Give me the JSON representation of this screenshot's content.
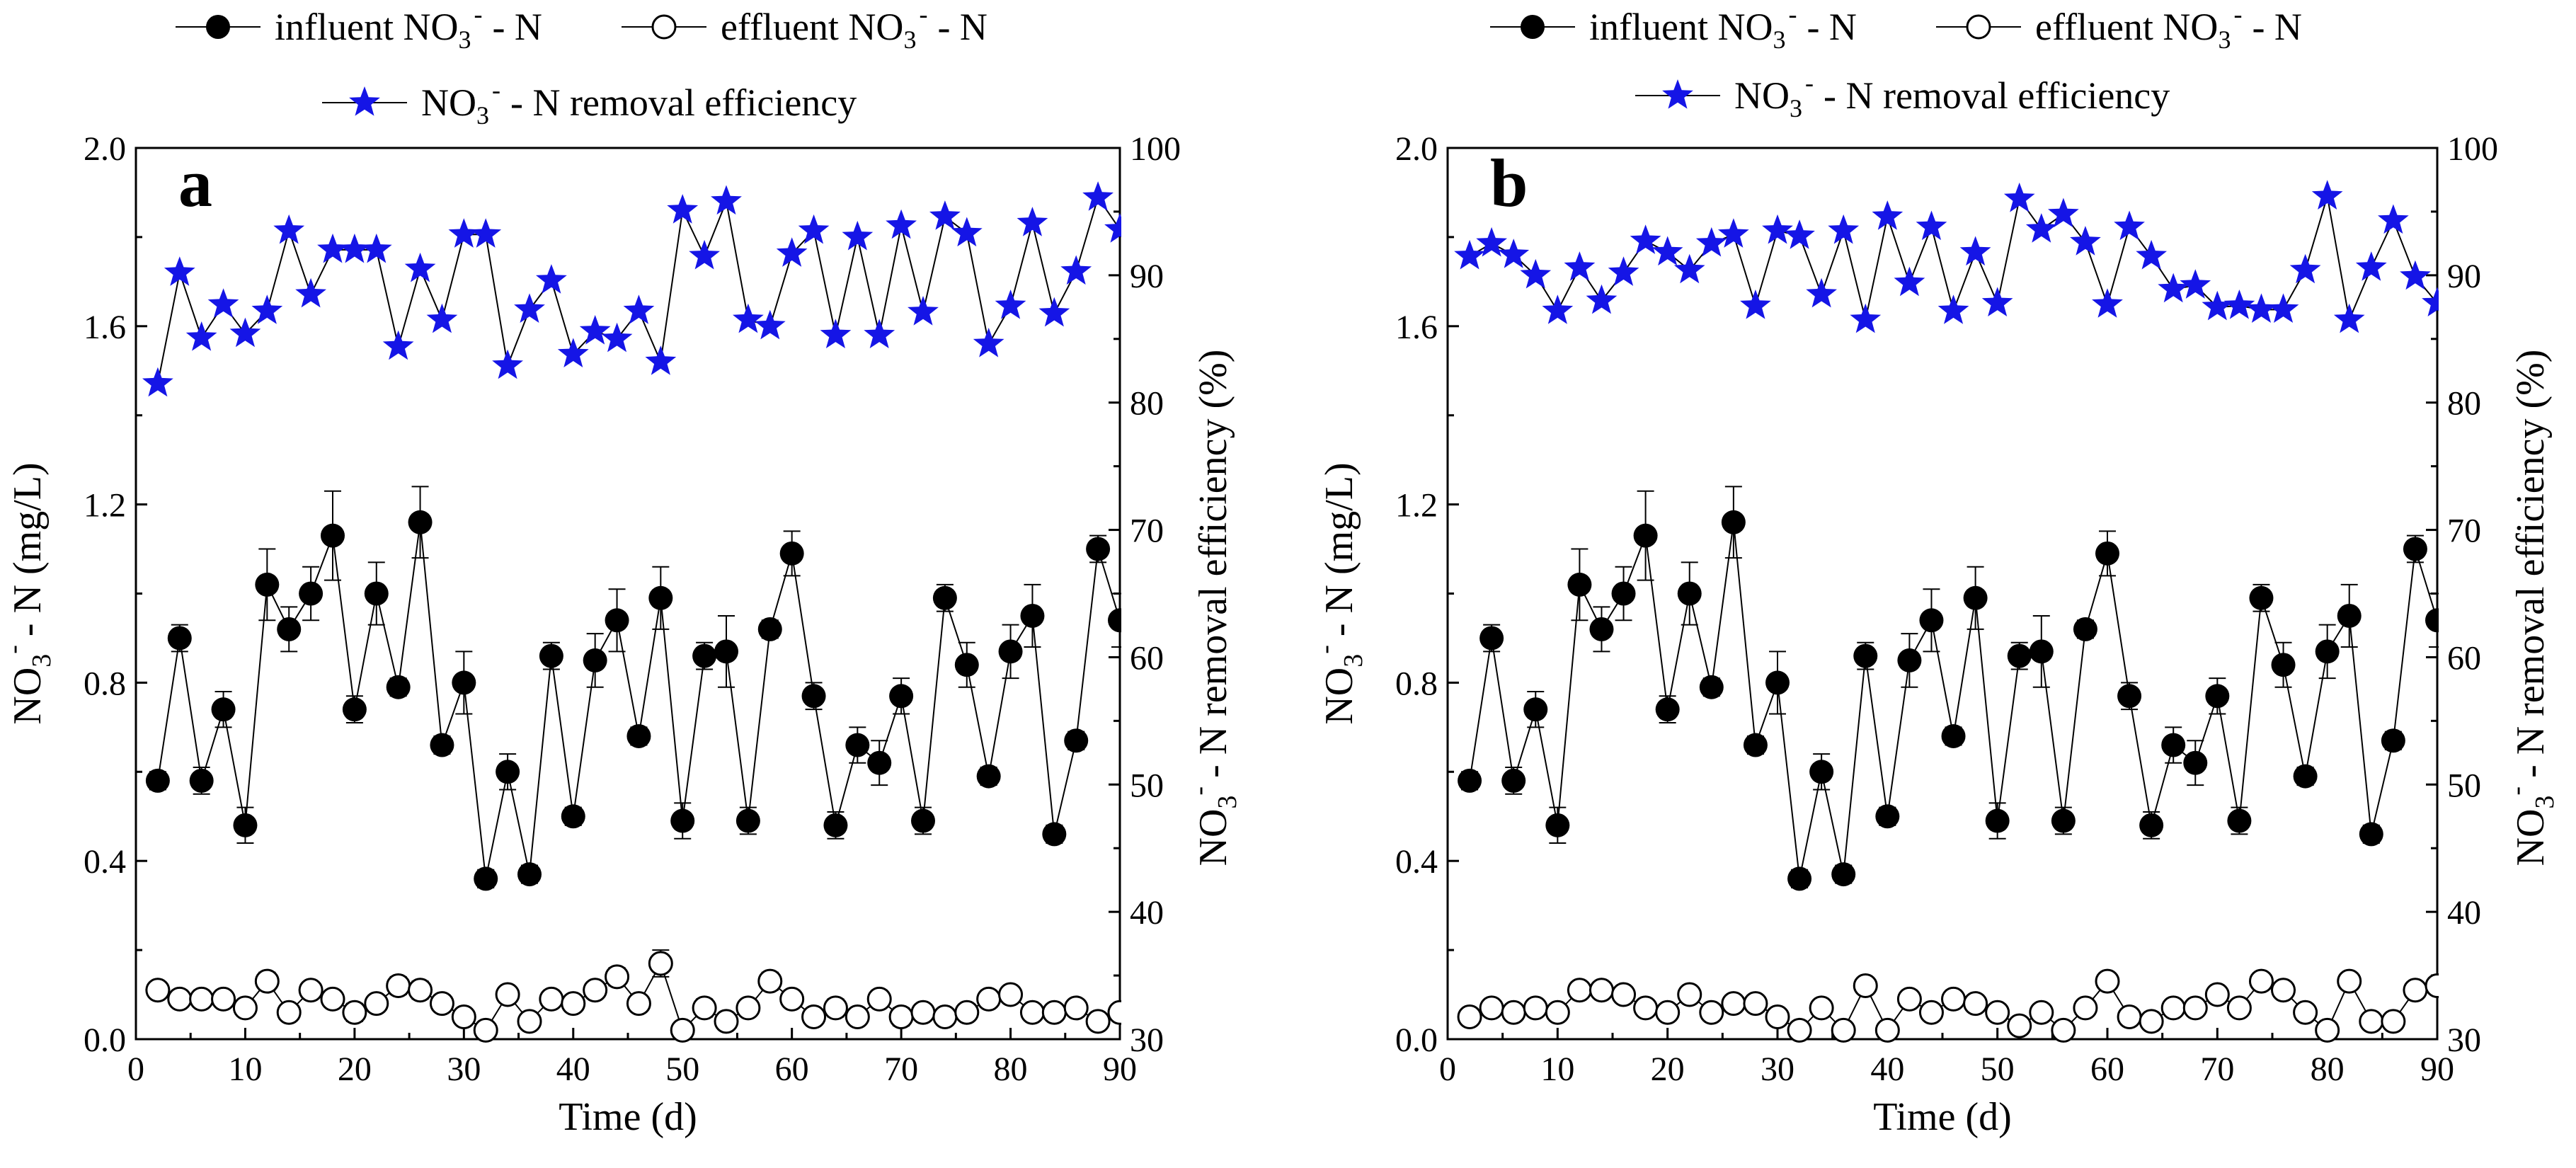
{
  "figure": {
    "legend": {
      "influent": "influent NO",
      "effluent": "effluent NO",
      "efficiency": "NO",
      "ion_sub": "3",
      "ion_sup": "-",
      "n_suffix": "- N",
      "eff_suffix": "- N removal efficiency"
    },
    "axes_text": {
      "xlabel": "Time (d)",
      "ylabel_left_main": "NO",
      "ylabel_left_rest": "- N (mg/L)",
      "ylabel_right_main": "NO",
      "ylabel_right_rest": "- N removal efficiency (%)",
      "sub": "3",
      "sup": "-"
    },
    "colors": {
      "efficiency": "#1515e6",
      "ink": "#000000",
      "open_marker": "#ffffff"
    }
  },
  "chart_data": [
    {
      "panel": "a",
      "type": "scatter-line",
      "xlabel": "Time (d)",
      "ylabel": "NO3- - N (mg/L)",
      "ylabel_right": "NO3- - N removal efficiency (%)",
      "xlim": [
        0,
        90
      ],
      "ylim": [
        0,
        2.0
      ],
      "ylim_right": [
        30,
        100
      ],
      "xticks": [
        0,
        10,
        20,
        30,
        40,
        50,
        60,
        70,
        80,
        90
      ],
      "yticks": [
        0.0,
        0.4,
        0.8,
        1.2,
        1.6,
        2.0
      ],
      "yticks_right": [
        30,
        40,
        50,
        60,
        70,
        80,
        90,
        100
      ],
      "series": [
        {
          "name": "influent NO3- - N",
          "marker": "filled-circle",
          "axis": "left",
          "x": [
            2,
            4,
            6,
            8,
            10,
            12,
            14,
            16,
            18,
            20,
            22,
            24,
            26,
            28,
            30,
            32,
            34,
            36,
            38,
            40,
            42,
            44,
            46,
            48,
            50,
            52,
            54,
            56,
            58,
            60,
            62,
            64,
            66,
            68,
            70,
            72,
            74,
            76,
            78,
            80,
            82,
            84,
            86,
            88,
            90
          ],
          "y": [
            0.58,
            0.9,
            0.58,
            0.74,
            0.48,
            1.02,
            0.92,
            1.0,
            1.13,
            0.74,
            1.0,
            0.79,
            1.16,
            0.66,
            0.8,
            0.36,
            0.6,
            0.37,
            0.86,
            0.5,
            0.85,
            0.94,
            0.68,
            0.99,
            0.49,
            0.86,
            0.87,
            0.49,
            0.92,
            1.09,
            0.77,
            0.48,
            0.66,
            0.62,
            0.77,
            0.49,
            0.99,
            0.84,
            0.59,
            0.87,
            0.95,
            0.46,
            0.67,
            1.1,
            0.94
          ],
          "err": [
            0.02,
            0.03,
            0.03,
            0.04,
            0.04,
            0.08,
            0.05,
            0.06,
            0.1,
            0.03,
            0.07,
            0.02,
            0.08,
            0.02,
            0.07,
            0.02,
            0.04,
            0.02,
            0.03,
            0.02,
            0.06,
            0.07,
            0.02,
            0.07,
            0.04,
            0.03,
            0.08,
            0.03,
            0.02,
            0.05,
            0.03,
            0.03,
            0.04,
            0.05,
            0.04,
            0.03,
            0.03,
            0.05,
            0.02,
            0.06,
            0.07,
            0.02,
            0.02,
            0.03,
            0.06
          ]
        },
        {
          "name": "effluent NO3- - N",
          "marker": "open-circle",
          "axis": "left",
          "x": [
            2,
            4,
            6,
            8,
            10,
            12,
            14,
            16,
            18,
            20,
            22,
            24,
            26,
            28,
            30,
            32,
            34,
            36,
            38,
            40,
            42,
            44,
            46,
            48,
            50,
            52,
            54,
            56,
            58,
            60,
            62,
            64,
            66,
            68,
            70,
            72,
            74,
            76,
            78,
            80,
            82,
            84,
            86,
            88,
            90
          ],
          "y": [
            0.11,
            0.09,
            0.09,
            0.09,
            0.07,
            0.13,
            0.06,
            0.11,
            0.09,
            0.06,
            0.08,
            0.12,
            0.11,
            0.08,
            0.05,
            0.02,
            0.1,
            0.04,
            0.09,
            0.08,
            0.11,
            0.14,
            0.08,
            0.17,
            0.02,
            0.07,
            0.04,
            0.07,
            0.13,
            0.09,
            0.05,
            0.07,
            0.05,
            0.09,
            0.05,
            0.06,
            0.05,
            0.06,
            0.09,
            0.1,
            0.06,
            0.06,
            0.07,
            0.04,
            0.06
          ],
          "err": [
            0.01,
            0.01,
            0.01,
            0.01,
            0.01,
            0.02,
            0.01,
            0.01,
            0.01,
            0.02,
            0.01,
            0.02,
            0.02,
            0.01,
            0.01,
            0.01,
            0.01,
            0.01,
            0.01,
            0.01,
            0.01,
            0.02,
            0.01,
            0.03,
            0.01,
            0.02,
            0.01,
            0.01,
            0.02,
            0.01,
            0.01,
            0.02,
            0.01,
            0.01,
            0.02,
            0.01,
            0.01,
            0.01,
            0.01,
            0.01,
            0.01,
            0.01,
            0.01,
            0.01,
            0.01
          ]
        },
        {
          "name": "NO3- - N removal efficiency",
          "marker": "star",
          "axis": "right",
          "color": "#1515e6",
          "x": [
            2,
            4,
            6,
            8,
            10,
            12,
            14,
            16,
            18,
            20,
            22,
            24,
            26,
            28,
            30,
            32,
            34,
            36,
            38,
            40,
            42,
            44,
            46,
            48,
            50,
            52,
            54,
            56,
            58,
            60,
            62,
            64,
            66,
            68,
            70,
            72,
            74,
            76,
            78,
            80,
            82,
            84,
            86,
            88,
            90
          ],
          "y": [
            81.5,
            90.2,
            85.1,
            87.7,
            85.4,
            87.2,
            93.5,
            88.5,
            92.0,
            92.0,
            92.0,
            84.4,
            90.5,
            86.5,
            93.2,
            93.2,
            82.9,
            87.3,
            89.6,
            83.8,
            85.6,
            85.0,
            87.2,
            83.2,
            95.1,
            91.5,
            95.8,
            86.5,
            86.0,
            91.7,
            93.5,
            85.3,
            93.0,
            85.3,
            93.9,
            87.1,
            94.6,
            93.3,
            84.6,
            87.6,
            94.1,
            87.0,
            90.3,
            96.1,
            93.6
          ]
        }
      ]
    },
    {
      "panel": "b",
      "type": "scatter-line",
      "xlabel": "Time (d)",
      "ylabel": "NO3- - N (mg/L)",
      "ylabel_right": "NO3- - N removal efficiency (%)",
      "xlim": [
        0,
        90
      ],
      "ylim": [
        0,
        2.0
      ],
      "ylim_right": [
        30,
        100
      ],
      "xticks": [
        0,
        10,
        20,
        30,
        40,
        50,
        60,
        70,
        80,
        90
      ],
      "yticks": [
        0.0,
        0.4,
        0.8,
        1.2,
        1.6,
        2.0
      ],
      "yticks_right": [
        30,
        40,
        50,
        60,
        70,
        80,
        90,
        100
      ],
      "series": [
        {
          "name": "influent NO3- - N",
          "marker": "filled-circle",
          "axis": "left",
          "x": [
            2,
            4,
            6,
            8,
            10,
            12,
            14,
            16,
            18,
            20,
            22,
            24,
            26,
            28,
            30,
            32,
            34,
            36,
            38,
            40,
            42,
            44,
            46,
            48,
            50,
            52,
            54,
            56,
            58,
            60,
            62,
            64,
            66,
            68,
            70,
            72,
            74,
            76,
            78,
            80,
            82,
            84,
            86,
            88,
            90
          ],
          "y": [
            0.58,
            0.9,
            0.58,
            0.74,
            0.48,
            1.02,
            0.92,
            1.0,
            1.13,
            0.74,
            1.0,
            0.79,
            1.16,
            0.66,
            0.8,
            0.36,
            0.6,
            0.37,
            0.86,
            0.5,
            0.85,
            0.94,
            0.68,
            0.99,
            0.49,
            0.86,
            0.87,
            0.49,
            0.92,
            1.09,
            0.77,
            0.48,
            0.66,
            0.62,
            0.77,
            0.49,
            0.99,
            0.84,
            0.59,
            0.87,
            0.95,
            0.46,
            0.67,
            1.1,
            0.94
          ],
          "err": [
            0.02,
            0.03,
            0.03,
            0.04,
            0.04,
            0.08,
            0.05,
            0.06,
            0.1,
            0.03,
            0.07,
            0.02,
            0.08,
            0.02,
            0.07,
            0.02,
            0.04,
            0.02,
            0.03,
            0.02,
            0.06,
            0.07,
            0.02,
            0.07,
            0.04,
            0.03,
            0.08,
            0.03,
            0.02,
            0.05,
            0.03,
            0.03,
            0.04,
            0.05,
            0.04,
            0.03,
            0.03,
            0.05,
            0.02,
            0.06,
            0.07,
            0.02,
            0.02,
            0.03,
            0.06
          ]
        },
        {
          "name": "effluent NO3- - N",
          "marker": "open-circle",
          "axis": "left",
          "x": [
            2,
            4,
            6,
            8,
            10,
            12,
            14,
            16,
            18,
            20,
            22,
            24,
            26,
            28,
            30,
            32,
            34,
            36,
            38,
            40,
            42,
            44,
            46,
            48,
            50,
            52,
            54,
            56,
            58,
            60,
            62,
            64,
            66,
            68,
            70,
            72,
            74,
            76,
            78,
            80,
            82,
            84,
            86,
            88,
            90
          ],
          "y": [
            0.05,
            0.07,
            0.06,
            0.07,
            0.06,
            0.11,
            0.11,
            0.1,
            0.07,
            0.06,
            0.1,
            0.06,
            0.08,
            0.08,
            0.05,
            0.02,
            0.07,
            0.02,
            0.12,
            0.02,
            0.09,
            0.06,
            0.09,
            0.08,
            0.06,
            0.03,
            0.06,
            0.02,
            0.07,
            0.13,
            0.05,
            0.04,
            0.07,
            0.07,
            0.1,
            0.07,
            0.13,
            0.11,
            0.06,
            0.02,
            0.13,
            0.04,
            0.04,
            0.11,
            0.12
          ],
          "err": [
            0.01,
            0.01,
            0.01,
            0.01,
            0.01,
            0.01,
            0.01,
            0.01,
            0.01,
            0.01,
            0.01,
            0.01,
            0.01,
            0.01,
            0.01,
            0.01,
            0.01,
            0.01,
            0.01,
            0.01,
            0.01,
            0.01,
            0.01,
            0.01,
            0.01,
            0.01,
            0.01,
            0.01,
            0.01,
            0.01,
            0.01,
            0.01,
            0.01,
            0.01,
            0.01,
            0.01,
            0.01,
            0.01,
            0.01,
            0.01,
            0.01,
            0.01,
            0.01,
            0.01,
            0.01
          ]
        },
        {
          "name": "NO3- - N removal efficiency",
          "marker": "star",
          "axis": "right",
          "color": "#1515e6",
          "x": [
            2,
            4,
            6,
            8,
            10,
            12,
            14,
            16,
            18,
            20,
            22,
            24,
            26,
            28,
            30,
            32,
            34,
            36,
            38,
            40,
            42,
            44,
            46,
            48,
            50,
            52,
            54,
            56,
            58,
            60,
            62,
            64,
            66,
            68,
            70,
            72,
            74,
            76,
            78,
            80,
            82,
            84,
            86,
            88,
            90
          ],
          "y": [
            91.5,
            92.5,
            91.6,
            90.0,
            87.2,
            90.6,
            88.0,
            90.2,
            92.7,
            91.8,
            90.4,
            92.5,
            93.2,
            87.6,
            93.5,
            93.1,
            88.5,
            93.5,
            86.5,
            94.6,
            89.4,
            93.8,
            87.2,
            91.8,
            87.8,
            96.0,
            93.6,
            94.8,
            92.6,
            87.7,
            93.8,
            91.5,
            88.9,
            89.2,
            87.5,
            87.6,
            87.3,
            87.3,
            90.4,
            96.2,
            86.5,
            90.6,
            94.3,
            89.9,
            87.8
          ]
        }
      ]
    }
  ]
}
